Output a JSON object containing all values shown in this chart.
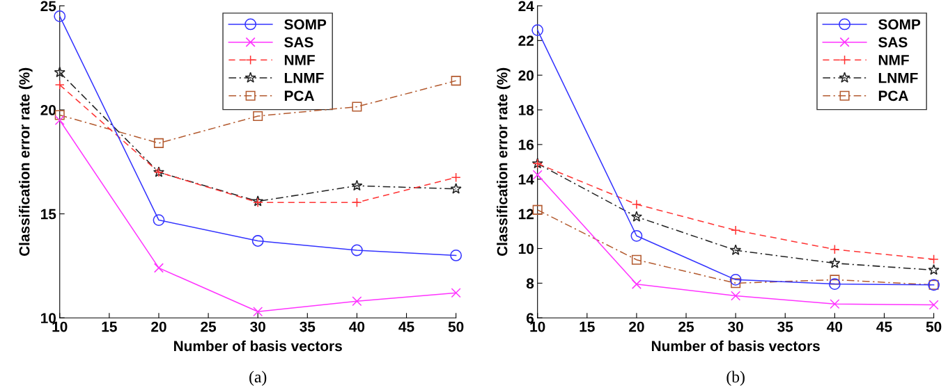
{
  "chart_data": [
    {
      "type": "line",
      "xlabel": "Number of basis vectors",
      "ylabel": "Classification error rate (%)",
      "annotations": [
        "(a)"
      ],
      "x": [
        10,
        20,
        30,
        40,
        50
      ],
      "xlim": [
        10,
        50
      ],
      "xticks": [
        10,
        15,
        20,
        25,
        30,
        35,
        40,
        45,
        50
      ],
      "ylim": [
        10,
        25
      ],
      "yticks": [
        10,
        15,
        20,
        25
      ],
      "grid": false,
      "legend": "top",
      "series": [
        {
          "name": "SOMP",
          "color": "#3333ff",
          "marker": "circle",
          "line_style": "solid",
          "values": [
            24.5,
            14.7,
            13.7,
            13.25,
            13.0
          ]
        },
        {
          "name": "SAS",
          "color": "#ff33ff",
          "marker": "x",
          "line_style": "solid",
          "values": [
            19.5,
            12.4,
            10.3,
            10.8,
            11.2
          ]
        },
        {
          "name": "NMF",
          "color": "#ff3333",
          "marker": "plus",
          "line_style": "dashed",
          "values": [
            21.2,
            17.0,
            15.55,
            15.55,
            16.75
          ]
        },
        {
          "name": "LNMF",
          "color": "#222222",
          "marker": "star",
          "line_style": "dashdot",
          "values": [
            21.8,
            17.0,
            15.6,
            16.35,
            16.2
          ]
        },
        {
          "name": "PCA",
          "color": "#b35a2f",
          "marker": "square",
          "line_style": "dashdot",
          "values": [
            19.75,
            18.4,
            19.7,
            20.15,
            21.4
          ]
        }
      ]
    },
    {
      "type": "line",
      "xlabel": "Number of basis vectors",
      "ylabel": "Classification error rate (%)",
      "annotations": [
        "(b)"
      ],
      "x": [
        10,
        20,
        30,
        40,
        50
      ],
      "xlim": [
        10,
        50
      ],
      "xticks": [
        10,
        15,
        20,
        25,
        30,
        35,
        40,
        45,
        50
      ],
      "ylim": [
        6,
        24
      ],
      "yticks": [
        6,
        8,
        10,
        12,
        14,
        16,
        18,
        20,
        22,
        24
      ],
      "grid": false,
      "legend": "top right",
      "series": [
        {
          "name": "SOMP",
          "color": "#3333ff",
          "marker": "circle",
          "line_style": "solid",
          "values": [
            22.6,
            10.73,
            8.2,
            7.95,
            7.9
          ]
        },
        {
          "name": "SAS",
          "color": "#ff33ff",
          "marker": "x",
          "line_style": "solid",
          "values": [
            14.25,
            7.94,
            7.27,
            6.8,
            6.75
          ]
        },
        {
          "name": "NMF",
          "color": "#ff3333",
          "marker": "plus",
          "line_style": "dashed",
          "values": [
            14.9,
            12.55,
            11.05,
            9.95,
            9.38
          ]
        },
        {
          "name": "LNMF",
          "color": "#222222",
          "marker": "star",
          "line_style": "dashdot",
          "values": [
            14.9,
            11.83,
            9.9,
            9.15,
            8.76
          ]
        },
        {
          "name": "PCA",
          "color": "#b35a2f",
          "marker": "square",
          "line_style": "dashdot",
          "values": [
            12.23,
            9.35,
            8.0,
            8.2,
            7.9
          ]
        }
      ]
    }
  ]
}
